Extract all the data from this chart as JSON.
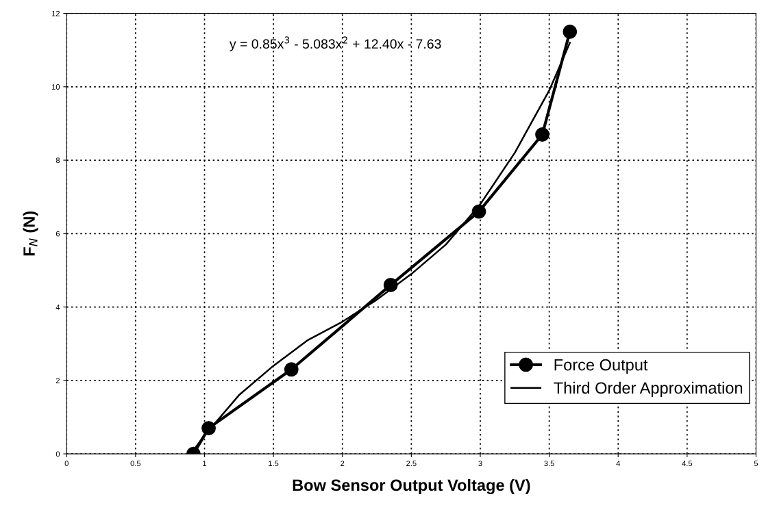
{
  "chart_data": {
    "type": "line",
    "xlabel": "Bow Sensor Output Voltage (V)",
    "ylabel": "F$_{N}$ (N)",
    "xlim": [
      0,
      5
    ],
    "xticks": [
      0,
      0.5,
      1,
      1.5,
      2,
      2.5,
      3,
      3.5,
      4,
      4.5,
      5
    ],
    "ylim": [
      0,
      12
    ],
    "yticks": [
      0,
      2,
      4,
      6,
      8,
      10,
      12
    ],
    "grid": true,
    "legend": "bottom right",
    "marker": "circle",
    "line_style": "solid",
    "annotations": [
      "y = 0.85x$^{3}$ - 5.083x$^{2}$ + 12.40x - 7.63"
    ],
    "series": [
      {
        "name": "Force Output",
        "color": "#000000",
        "x": [
          0.92,
          1.03,
          1.63,
          2.35,
          2.99,
          3.45,
          3.65
        ],
        "values": [
          0,
          0.7,
          2.3,
          4.6,
          6.6,
          8.7,
          11.5
        ]
      },
      {
        "name": "Third Order Approximation",
        "color": "#000000",
        "marker": "none",
        "x": [
          0.92,
          1.0,
          1.25,
          1.5,
          1.75,
          2.0,
          2.25,
          2.5,
          2.75,
          3.0,
          3.25,
          3.5,
          3.65
        ],
        "values": [
          0.1,
          0.5,
          1.6,
          2.4,
          3.1,
          3.6,
          4.2,
          4.9,
          5.7,
          6.8,
          8.2,
          9.9,
          11.2
        ]
      }
    ]
  }
}
